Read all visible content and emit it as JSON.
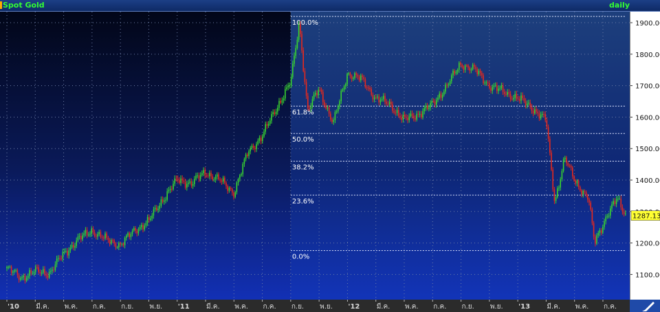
{
  "header": {
    "title": "Spot Gold",
    "period": "daily"
  },
  "chart_data": {
    "type": "candlestick",
    "ylim": [
      1020,
      1935
    ],
    "y_ticks": [
      1100,
      1200,
      1300,
      1400,
      1500,
      1600,
      1700,
      1800,
      1900
    ],
    "y_tick_labels": [
      "1100.00",
      "1200.00",
      "1300.00",
      "1400.00",
      "1500.00",
      "1600.00",
      "1700.00",
      "1800.00",
      "1900.00"
    ],
    "x_tick_labels": [
      "'10",
      "มี.ค.",
      "พ.ค.",
      "ก.ค.",
      "ก.ย.",
      "พ.ย.",
      "'11",
      "มี.ค.",
      "พ.ค.",
      "ก.ค.",
      "ก.ย.",
      "พ.ย.",
      "'12",
      "มี.ค.",
      "พ.ค.",
      "ก.ค.",
      "ก.ย.",
      "พ.ย.",
      "'13",
      "มี.ค.",
      "พ.ค.",
      "ก.ค."
    ],
    "x_tick_months": [
      0,
      2,
      4,
      6,
      8,
      10,
      12,
      14,
      16,
      18,
      20,
      22,
      24,
      26,
      28,
      30,
      32,
      34,
      36,
      38,
      40,
      42
    ],
    "months_span": 43.6,
    "last_price": "1287.13",
    "last_price_value": 1287.13,
    "fibonacci": {
      "start_month": 20.0,
      "levels": [
        {
          "label": "100.0%",
          "value": 1920
        },
        {
          "label": "61.8%",
          "value": 1635
        },
        {
          "label": "50.0%",
          "value": 1548
        },
        {
          "label": "38.2%",
          "value": 1460
        },
        {
          "label": "23.6%",
          "value": 1352
        },
        {
          "label": "0.0%",
          "value": 1176
        }
      ]
    },
    "path": [
      [
        0,
        1120
      ],
      [
        1,
        1090
      ],
      [
        2,
        1110
      ],
      [
        3,
        1105
      ],
      [
        4,
        1165
      ],
      [
        5,
        1210
      ],
      [
        6,
        1240
      ],
      [
        7,
        1210
      ],
      [
        8,
        1195
      ],
      [
        9,
        1240
      ],
      [
        10,
        1270
      ],
      [
        11,
        1340
      ],
      [
        12,
        1400
      ],
      [
        13,
        1390
      ],
      [
        14,
        1425
      ],
      [
        15,
        1400
      ],
      [
        16,
        1360
      ],
      [
        17,
        1490
      ],
      [
        18,
        1540
      ],
      [
        19,
        1630
      ],
      [
        20,
        1710
      ],
      [
        20.6,
        1900
      ],
      [
        21.2,
        1620
      ],
      [
        22,
        1690
      ],
      [
        23,
        1580
      ],
      [
        24,
        1740
      ],
      [
        25,
        1720
      ],
      [
        26,
        1660
      ],
      [
        27,
        1640
      ],
      [
        28,
        1590
      ],
      [
        29,
        1610
      ],
      [
        30,
        1640
      ],
      [
        31,
        1700
      ],
      [
        32,
        1770
      ],
      [
        33,
        1750
      ],
      [
        34,
        1700
      ],
      [
        35,
        1680
      ],
      [
        36,
        1660
      ],
      [
        37,
        1630
      ],
      [
        38,
        1590
      ],
      [
        38.6,
        1330
      ],
      [
        39.3,
        1470
      ],
      [
        40,
        1400
      ],
      [
        41,
        1340
      ],
      [
        41.4,
        1200
      ],
      [
        42.3,
        1290
      ],
      [
        43,
        1340
      ],
      [
        43.6,
        1290
      ]
    ]
  }
}
